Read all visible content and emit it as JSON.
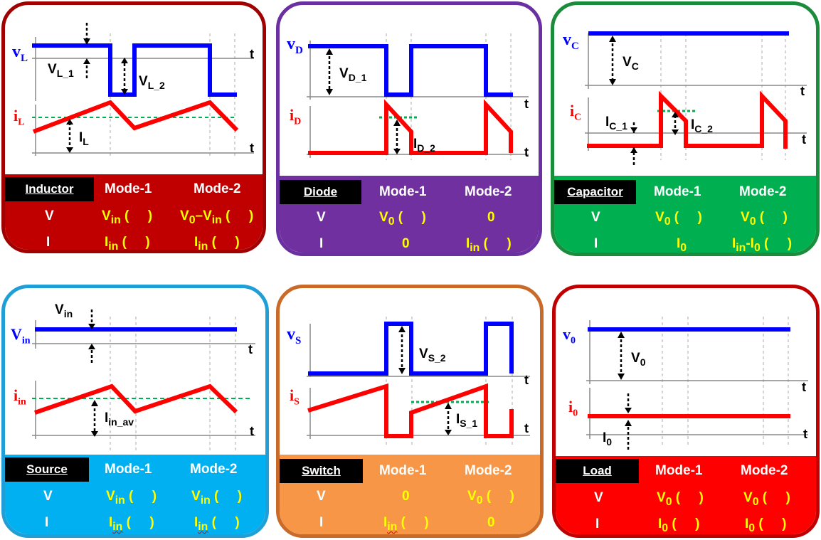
{
  "header": {
    "mode1": "Mode-1",
    "mode2": "Mode-2"
  },
  "row_labels": {
    "v": "V",
    "i": "I"
  },
  "axis_t": "t",
  "panels": {
    "inductor": {
      "title": "Inductor",
      "color": "#c00000",
      "voltage_label": {
        "main": "v",
        "sub": "L"
      },
      "current_label": {
        "main": "i",
        "sub": "L"
      },
      "annotations": {
        "v1": {
          "main": "V",
          "sub": "L_1"
        },
        "v2": {
          "main": "V",
          "sub": "L_2"
        },
        "i": {
          "main": "I",
          "sub": "L"
        }
      },
      "v_mode1": {
        "main": "V",
        "sub": "in",
        "tail": " (     )"
      },
      "v_mode2": {
        "main": "V",
        "sub": "0",
        "tail": "–V",
        "sub2": "in",
        "tail2": " (     )"
      },
      "i_mode1": {
        "main": "I",
        "sub": "in",
        "tail": " (     )"
      },
      "i_mode2": {
        "main": "I",
        "sub": "in",
        "tail": " (     )"
      }
    },
    "diode": {
      "title": "Diode",
      "color": "#7030a0",
      "voltage_label": {
        "main": "v",
        "sub": "D"
      },
      "current_label": {
        "main": "i",
        "sub": "D"
      },
      "annotations": {
        "v1": {
          "main": "V",
          "sub": "D_1"
        },
        "i": {
          "main": "I",
          "sub": "D_2"
        }
      },
      "v_mode1": {
        "main": "V",
        "sub": "0",
        "tail": " (     )"
      },
      "v_mode2": "0",
      "i_mode1": "0",
      "i_mode2": {
        "main": "I",
        "sub": "in",
        "tail": " (     )"
      }
    },
    "capacitor": {
      "title": "Capacitor",
      "color": "#00b050",
      "voltage_label": {
        "main": "v",
        "sub": "C"
      },
      "current_label": {
        "main": "i",
        "sub": "C"
      },
      "annotations": {
        "v1": {
          "main": "V",
          "sub": "C"
        },
        "i1": {
          "main": "I",
          "sub": "C_1"
        },
        "i2": {
          "main": "I",
          "sub": "C_2"
        }
      },
      "v_mode1": {
        "main": "V",
        "sub": "0",
        "tail": " (     )"
      },
      "v_mode2": {
        "main": "V",
        "sub": "0",
        "tail": " (     )"
      },
      "i_mode1": {
        "main": "I",
        "sub": "0",
        "tail": ""
      },
      "i_mode2": {
        "main": "I",
        "sub": "in",
        "tail": "-I",
        "sub2": "0",
        "tail2": " (     )"
      }
    },
    "source": {
      "title": "Source",
      "color": "#00b0f0",
      "voltage_label": {
        "main": "V",
        "sub": "in"
      },
      "current_label": {
        "main": "i",
        "sub": "in"
      },
      "annotations": {
        "v1": {
          "main": "V",
          "sub": "in"
        },
        "i": {
          "main": "I",
          "sub": "in_av"
        }
      },
      "v_mode1": {
        "main": "V",
        "sub": "in",
        "tail": " (     )"
      },
      "v_mode2": {
        "main": "V",
        "sub": "in",
        "tail": " (     )"
      },
      "i_mode1": {
        "main": "I",
        "sub": "in",
        "tail": " (     )"
      },
      "i_mode2": {
        "main": "I",
        "sub": "in",
        "tail": " (     )"
      }
    },
    "switch": {
      "title": "Switch",
      "color": "#f79646",
      "voltage_label": {
        "main": "v",
        "sub": "S"
      },
      "current_label": {
        "main": "i",
        "sub": "S"
      },
      "annotations": {
        "v2": {
          "main": "V",
          "sub": "S_2"
        },
        "i": {
          "main": "I",
          "sub": "S_1"
        }
      },
      "v_mode1": "0",
      "v_mode2": {
        "main": "V",
        "sub": "0",
        "tail": " (     )"
      },
      "i_mode1": {
        "main": "I",
        "sub": "in",
        "tail": " (     )"
      },
      "i_mode2": "0"
    },
    "load": {
      "title": "Load",
      "color": "#ff0000",
      "voltage_label": {
        "main": "v",
        "sub": "0"
      },
      "current_label": {
        "main": "i",
        "sub": "0"
      },
      "annotations": {
        "v1": {
          "main": "V",
          "sub": "0"
        },
        "i": {
          "main": "I",
          "sub": "0"
        }
      },
      "v_mode1": {
        "main": "V",
        "sub": "0",
        "tail": " (     )"
      },
      "v_mode2": {
        "main": "V",
        "sub": "0",
        "tail": " (     )"
      },
      "i_mode1": {
        "main": "I",
        "sub": "0",
        "tail": " (     )"
      },
      "i_mode2": {
        "main": "I",
        "sub": "0",
        "tail": " (     )"
      }
    }
  }
}
